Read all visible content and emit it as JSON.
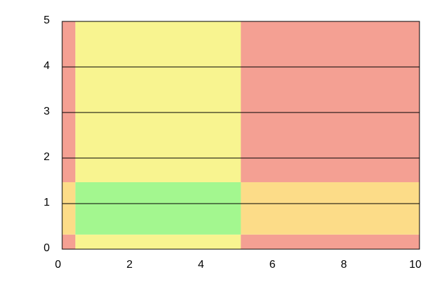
{
  "chart_data": {
    "type": "region",
    "x_edges": [
      0,
      0.37,
      5,
      10
    ],
    "y_edges": [
      0,
      0.32,
      1.47,
      5
    ],
    "colors": [
      [
        "#f4a093",
        "#f8f490",
        "#f4a093"
      ],
      [
        "#fcdc88",
        "#a3f78f",
        "#fcdc88"
      ],
      [
        "#f4a093",
        "#f8f490",
        "#f4a093"
      ]
    ],
    "xlim": [
      0,
      10
    ],
    "xticks": [
      0,
      2,
      4,
      6,
      8,
      10
    ],
    "ylim": [
      0,
      5
    ],
    "yticks": [
      0,
      1,
      2,
      3,
      4,
      5
    ],
    "grid": "y"
  }
}
